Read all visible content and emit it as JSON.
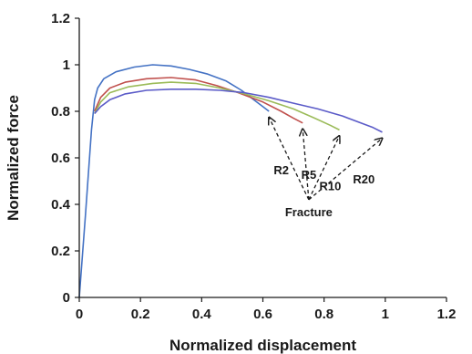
{
  "chart_data": {
    "type": "line",
    "title": "",
    "xlabel": "Normalized displacement",
    "ylabel": "Normalized force",
    "xlim": [
      0,
      1.2
    ],
    "ylim": [
      0,
      1.2
    ],
    "xticks": [
      "0",
      "0.2",
      "0.4",
      "0.6",
      "0.8",
      "1",
      "1.2"
    ],
    "yticks": [
      "0",
      "0.2",
      "0.4",
      "0.6",
      "0.8",
      "1",
      "1.2"
    ],
    "grid": false,
    "legend": "none",
    "series": [
      {
        "name": "R2",
        "color": "#4472C4",
        "points": [
          [
            0,
            0
          ],
          [
            0.02,
            0.35
          ],
          [
            0.04,
            0.72
          ],
          [
            0.05,
            0.85
          ],
          [
            0.06,
            0.9
          ],
          [
            0.08,
            0.94
          ],
          [
            0.12,
            0.97
          ],
          [
            0.18,
            0.99
          ],
          [
            0.24,
            1.0
          ],
          [
            0.3,
            0.995
          ],
          [
            0.36,
            0.98
          ],
          [
            0.42,
            0.96
          ],
          [
            0.48,
            0.93
          ],
          [
            0.53,
            0.89
          ],
          [
            0.57,
            0.85
          ],
          [
            0.6,
            0.82
          ],
          [
            0.62,
            0.8
          ]
        ]
      },
      {
        "name": "R5",
        "color": "#C0504D",
        "points": [
          [
            0.05,
            0.8
          ],
          [
            0.07,
            0.86
          ],
          [
            0.1,
            0.9
          ],
          [
            0.15,
            0.925
          ],
          [
            0.22,
            0.94
          ],
          [
            0.3,
            0.945
          ],
          [
            0.38,
            0.935
          ],
          [
            0.45,
            0.91
          ],
          [
            0.52,
            0.88
          ],
          [
            0.6,
            0.84
          ],
          [
            0.66,
            0.8
          ],
          [
            0.7,
            0.77
          ],
          [
            0.73,
            0.75
          ]
        ]
      },
      {
        "name": "R10",
        "color": "#9BBB59",
        "points": [
          [
            0.05,
            0.79
          ],
          [
            0.07,
            0.84
          ],
          [
            0.1,
            0.88
          ],
          [
            0.16,
            0.905
          ],
          [
            0.24,
            0.92
          ],
          [
            0.3,
            0.925
          ],
          [
            0.38,
            0.92
          ],
          [
            0.46,
            0.9
          ],
          [
            0.54,
            0.875
          ],
          [
            0.62,
            0.845
          ],
          [
            0.7,
            0.81
          ],
          [
            0.77,
            0.77
          ],
          [
            0.82,
            0.74
          ],
          [
            0.85,
            0.72
          ]
        ]
      },
      {
        "name": "R20",
        "color": "#5B5BC8",
        "points": [
          [
            0.05,
            0.79
          ],
          [
            0.07,
            0.82
          ],
          [
            0.1,
            0.85
          ],
          [
            0.15,
            0.875
          ],
          [
            0.22,
            0.89
          ],
          [
            0.3,
            0.895
          ],
          [
            0.38,
            0.895
          ],
          [
            0.46,
            0.89
          ],
          [
            0.54,
            0.88
          ],
          [
            0.62,
            0.86
          ],
          [
            0.7,
            0.835
          ],
          [
            0.78,
            0.81
          ],
          [
            0.86,
            0.78
          ],
          [
            0.92,
            0.75
          ],
          [
            0.96,
            0.73
          ],
          [
            0.99,
            0.71
          ]
        ]
      }
    ],
    "annotations": {
      "labels": [
        {
          "text": "R2",
          "x": 0.66,
          "y": 0.53
        },
        {
          "text": "R5",
          "x": 0.75,
          "y": 0.51
        },
        {
          "text": "R10",
          "x": 0.82,
          "y": 0.46
        },
        {
          "text": "R20",
          "x": 0.93,
          "y": 0.49
        },
        {
          "text": "Fracture",
          "x": 0.75,
          "y": 0.35
        }
      ],
      "fracture_origin": [
        0.75,
        0.42
      ],
      "fracture_targets": [
        [
          0.62,
          0.79
        ],
        [
          0.73,
          0.74
        ],
        [
          0.85,
          0.71
        ],
        [
          0.99,
          0.7
        ]
      ]
    }
  }
}
